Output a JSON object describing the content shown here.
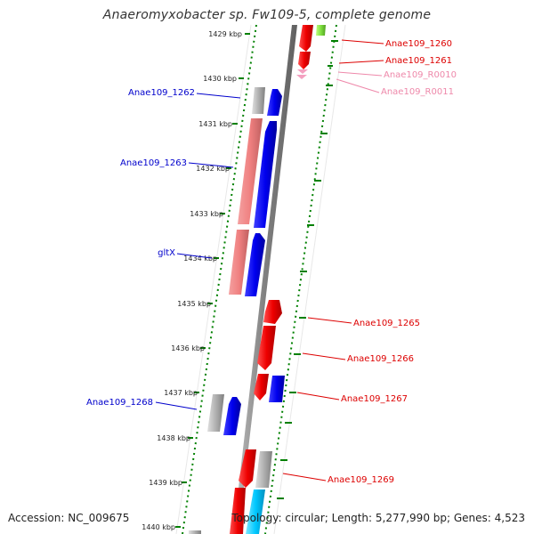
{
  "header": {
    "title": "Anaeromyxobacter sp. Fw109-5, complete genome"
  },
  "footer": {
    "accession": "Accession: NC_009675",
    "summary": "Topology: circular; Length: 5,277,990 bp; Genes: 4,523"
  },
  "colors": {
    "backbone": "#808080",
    "plus_strand": "#0000ee",
    "minus_strand": "#ee0000",
    "pseudo_light": "#f08080",
    "unknown_gray": "#a0a0a0",
    "rna": "#f4a0c0",
    "cyan": "#00c8ff",
    "green": "#80e040",
    "tick": "#008000",
    "left_label": "#0000cc",
    "right_label": "#dd0000",
    "right_label_rna": "#ee88aa"
  },
  "ruler": {
    "ticks": [
      "1429 kbp",
      "1430 kbp",
      "1431 kbp",
      "1432 kbp",
      "1433 kbp",
      "1434 kbp",
      "1435 kbp",
      "1436 kbp",
      "1437 kbp",
      "1438 kbp",
      "1439 kbp",
      "1440 kbp"
    ]
  },
  "labels_left": [
    {
      "name": "Anae109_1262"
    },
    {
      "name": "Anae109_1263"
    },
    {
      "name": "gltX"
    },
    {
      "name": "Anae109_1268"
    }
  ],
  "labels_right": [
    {
      "name": "Anae109_1260",
      "kind": "gene"
    },
    {
      "name": "Anae109_1261",
      "kind": "gene"
    },
    {
      "name": "Anae109_R0010",
      "kind": "rna"
    },
    {
      "name": "Anae109_R0011",
      "kind": "rna"
    },
    {
      "name": "Anae109_1265",
      "kind": "gene"
    },
    {
      "name": "Anae109_1266",
      "kind": "gene"
    },
    {
      "name": "Anae109_1267",
      "kind": "gene"
    },
    {
      "name": "Anae109_1269",
      "kind": "gene"
    }
  ]
}
